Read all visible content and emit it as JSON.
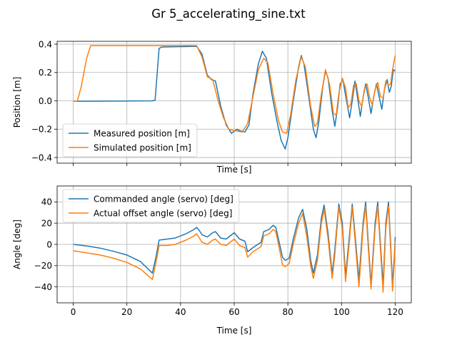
{
  "figure": {
    "title": "Gr 5_accelerating_sine.txt"
  },
  "colors": {
    "series1": "#1f77b4",
    "series2": "#ff7f0e",
    "grid": "#b0b0b0"
  },
  "chart_data": [
    {
      "type": "line",
      "xlabel": "Time [s]",
      "ylabel": "Position [m]",
      "xlim": [
        -6,
        126
      ],
      "ylim": [
        -0.44,
        0.42
      ],
      "xticks": [
        0,
        20,
        40,
        60,
        80,
        100,
        120
      ],
      "yticks": [
        -0.4,
        -0.2,
        0.0,
        0.2,
        0.4
      ],
      "ytick_labels": [
        "−0.4",
        "−0.2",
        "0.0",
        "0.2",
        "0.4"
      ],
      "show_xtick_labels": false,
      "grid": true,
      "legend": "lower-left",
      "series": [
        {
          "name": "Measured position [m]",
          "points": [
            [
              0,
              -0.003
            ],
            [
              15,
              -0.002
            ],
            [
              29.5,
              0.0
            ],
            [
              30.5,
              0.005
            ],
            [
              32,
              0.37
            ],
            [
              33,
              0.38
            ],
            [
              46,
              0.385
            ],
            [
              48,
              0.33
            ],
            [
              50,
              0.18
            ],
            [
              51.5,
              0.15
            ],
            [
              53,
              0.14
            ],
            [
              55,
              -0.04
            ],
            [
              57,
              -0.17
            ],
            [
              59,
              -0.23
            ],
            [
              61,
              -0.2
            ],
            [
              62,
              -0.21
            ],
            [
              64,
              -0.22
            ],
            [
              65.5,
              -0.17
            ],
            [
              67,
              0.05
            ],
            [
              69,
              0.26
            ],
            [
              70.5,
              0.35
            ],
            [
              72,
              0.3
            ],
            [
              74,
              0.05
            ],
            [
              76,
              -0.15
            ],
            [
              77.5,
              -0.28
            ],
            [
              79,
              -0.34
            ],
            [
              80,
              -0.26
            ],
            [
              82,
              0.0
            ],
            [
              84,
              0.24
            ],
            [
              85,
              0.32
            ],
            [
              86,
              0.26
            ],
            [
              88,
              0.0
            ],
            [
              89.5,
              -0.2
            ],
            [
              90.5,
              -0.26
            ],
            [
              91.5,
              -0.15
            ],
            [
              93,
              0.1
            ],
            [
              94,
              0.21
            ],
            [
              95,
              0.16
            ],
            [
              96.5,
              -0.07
            ],
            [
              97.5,
              -0.18
            ],
            [
              98.5,
              -0.05
            ],
            [
              99.5,
              0.12
            ],
            [
              100.5,
              0.15
            ],
            [
              101.5,
              0.04
            ],
            [
              103,
              -0.12
            ],
            [
              104,
              0.0
            ],
            [
              105,
              0.14
            ],
            [
              106,
              0.02
            ],
            [
              107,
              -0.11
            ],
            [
              108,
              0.02
            ],
            [
              109,
              0.12
            ],
            [
              110,
              0.02
            ],
            [
              111,
              -0.09
            ],
            [
              112,
              0.03
            ],
            [
              113,
              0.12
            ],
            [
              114,
              0.03
            ],
            [
              115,
              -0.06
            ],
            [
              116,
              0.08
            ],
            [
              117,
              0.15
            ],
            [
              117.8,
              0.06
            ],
            [
              118.5,
              0.1
            ],
            [
              119.3,
              0.22
            ],
            [
              120,
              0.21
            ]
          ]
        },
        {
          "name": "Simulated position [m]",
          "points": [
            [
              0,
              -0.003
            ],
            [
              1.5,
              -0.003
            ],
            [
              3,
              0.1
            ],
            [
              5,
              0.3
            ],
            [
              6.5,
              0.39
            ],
            [
              46,
              0.39
            ],
            [
              48,
              0.31
            ],
            [
              50,
              0.17
            ],
            [
              52,
              0.15
            ],
            [
              54,
              0.0
            ],
            [
              56,
              -0.12
            ],
            [
              58,
              -0.2
            ],
            [
              60,
              -0.21
            ],
            [
              63,
              -0.22
            ],
            [
              65,
              -0.16
            ],
            [
              67,
              0.03
            ],
            [
              69,
              0.22
            ],
            [
              71,
              0.3
            ],
            [
              72.5,
              0.27
            ],
            [
              74.5,
              0.05
            ],
            [
              76.5,
              -0.14
            ],
            [
              78,
              -0.22
            ],
            [
              79.5,
              -0.23
            ],
            [
              81,
              -0.1
            ],
            [
              83,
              0.15
            ],
            [
              85,
              0.31
            ],
            [
              86.5,
              0.24
            ],
            [
              88.5,
              -0.04
            ],
            [
              90,
              -0.18
            ],
            [
              91,
              -0.16
            ],
            [
              92.5,
              0.05
            ],
            [
              94,
              0.22
            ],
            [
              95.5,
              0.12
            ],
            [
              97,
              -0.09
            ],
            [
              98,
              -0.1
            ],
            [
              99,
              0.05
            ],
            [
              100.3,
              0.16
            ],
            [
              101.5,
              0.09
            ],
            [
              102.5,
              -0.05
            ],
            [
              103.5,
              -0.02
            ],
            [
              104.5,
              0.11
            ],
            [
              105.5,
              0.12
            ],
            [
              106.5,
              0.0
            ],
            [
              107.5,
              -0.04
            ],
            [
              108.5,
              0.08
            ],
            [
              109.5,
              0.12
            ],
            [
              110.5,
              0.02
            ],
            [
              111.5,
              -0.03
            ],
            [
              112.5,
              0.08
            ],
            [
              113.5,
              0.13
            ],
            [
              114.5,
              0.03
            ],
            [
              115.5,
              0.02
            ],
            [
              116.5,
              0.14
            ],
            [
              117.5,
              0.11
            ],
            [
              118.3,
              0.12
            ],
            [
              119,
              0.22
            ],
            [
              120,
              0.32
            ]
          ]
        }
      ]
    },
    {
      "type": "line",
      "xlabel": "Time [s]",
      "ylabel": "Angle [deg]",
      "xlim": [
        -6,
        126
      ],
      "ylim": [
        -55,
        55
      ],
      "xticks": [
        0,
        20,
        40,
        60,
        80,
        100,
        120
      ],
      "yticks": [
        -40,
        -20,
        0,
        20,
        40
      ],
      "ytick_labels": [
        "−40",
        "−20",
        "0",
        "20",
        "40"
      ],
      "show_xtick_labels": true,
      "grid": true,
      "legend": "upper-left",
      "series": [
        {
          "name": "Commanded angle (servo) [deg]",
          "points": [
            [
              0,
              0
            ],
            [
              5,
              -1.5
            ],
            [
              10,
              -3.5
            ],
            [
              15,
              -6.5
            ],
            [
              20,
              -10
            ],
            [
              25,
              -16
            ],
            [
              29.5,
              -27
            ],
            [
              31,
              -10
            ],
            [
              32,
              4
            ],
            [
              35,
              5
            ],
            [
              38,
              6
            ],
            [
              42,
              10
            ],
            [
              45,
              14
            ],
            [
              46,
              16
            ],
            [
              47,
              13
            ],
            [
              48,
              9
            ],
            [
              50,
              7
            ],
            [
              52,
              11
            ],
            [
              53,
              12
            ],
            [
              55,
              6
            ],
            [
              57,
              5
            ],
            [
              59,
              9
            ],
            [
              60,
              11
            ],
            [
              62,
              5
            ],
            [
              64,
              3
            ],
            [
              65,
              -7
            ],
            [
              67,
              -3
            ],
            [
              70,
              2
            ],
            [
              71,
              12
            ],
            [
              73,
              14
            ],
            [
              74.5,
              18
            ],
            [
              75.5,
              16
            ],
            [
              76.5,
              5
            ],
            [
              78,
              -12
            ],
            [
              79,
              -15
            ],
            [
              80.5,
              -13
            ],
            [
              82,
              5
            ],
            [
              84,
              25
            ],
            [
              85.5,
              33
            ],
            [
              87,
              15
            ],
            [
              88.5,
              -15
            ],
            [
              89.5,
              -27
            ],
            [
              91,
              -10
            ],
            [
              92.5,
              25
            ],
            [
              93.5,
              37
            ],
            [
              95,
              10
            ],
            [
              96.5,
              -28
            ],
            [
              97.5,
              -5
            ],
            [
              99,
              38
            ],
            [
              100.3,
              20
            ],
            [
              101.5,
              -30
            ],
            [
              103,
              10
            ],
            [
              104,
              38
            ],
            [
              105,
              10
            ],
            [
              106.5,
              -33
            ],
            [
              108,
              20
            ],
            [
              109,
              40
            ],
            [
              110,
              0
            ],
            [
              111,
              -38
            ],
            [
              112.5,
              20
            ],
            [
              113.5,
              40
            ],
            [
              114.5,
              0
            ],
            [
              115.5,
              -38
            ],
            [
              116.5,
              20
            ],
            [
              117.5,
              40
            ],
            [
              118.3,
              0
            ],
            [
              119,
              -38
            ],
            [
              119.7,
              -10
            ],
            [
              120,
              7
            ]
          ]
        },
        {
          "name": "Actual offset angle (servo) [deg]",
          "points": [
            [
              0,
              -6
            ],
            [
              5,
              -8
            ],
            [
              10,
              -10
            ],
            [
              15,
              -13
            ],
            [
              20,
              -17
            ],
            [
              25,
              -23
            ],
            [
              29.5,
              -33
            ],
            [
              31,
              -15
            ],
            [
              32,
              -1
            ],
            [
              35,
              -1
            ],
            [
              38,
              0
            ],
            [
              42,
              4
            ],
            [
              45,
              8
            ],
            [
              46,
              10
            ],
            [
              47,
              6
            ],
            [
              48,
              2
            ],
            [
              50,
              0
            ],
            [
              52,
              4
            ],
            [
              53,
              5
            ],
            [
              55,
              0
            ],
            [
              57,
              -1
            ],
            [
              59,
              3
            ],
            [
              60,
              5
            ],
            [
              62,
              -1
            ],
            [
              64,
              -3
            ],
            [
              65,
              -12
            ],
            [
              67,
              -7
            ],
            [
              70,
              -2
            ],
            [
              71,
              8
            ],
            [
              73,
              10
            ],
            [
              74.5,
              14
            ],
            [
              75.5,
              12
            ],
            [
              76.5,
              0
            ],
            [
              78,
              -19
            ],
            [
              79,
              -21
            ],
            [
              80.5,
              -18
            ],
            [
              82,
              0
            ],
            [
              84,
              20
            ],
            [
              85.5,
              29
            ],
            [
              87,
              8
            ],
            [
              88.5,
              -20
            ],
            [
              89.5,
              -32
            ],
            [
              91,
              -15
            ],
            [
              92.5,
              20
            ],
            [
              93.5,
              33
            ],
            [
              95,
              5
            ],
            [
              96.5,
              -32
            ],
            [
              97.5,
              -10
            ],
            [
              99,
              35
            ],
            [
              100.3,
              15
            ],
            [
              101.5,
              -35
            ],
            [
              103,
              5
            ],
            [
              104,
              35
            ],
            [
              105,
              5
            ],
            [
              106.5,
              -40
            ],
            [
              108,
              15
            ],
            [
              109,
              36
            ],
            [
              110,
              -5
            ],
            [
              111,
              -42
            ],
            [
              112.5,
              15
            ],
            [
              113.5,
              36
            ],
            [
              114.5,
              -5
            ],
            [
              115.5,
              -45
            ],
            [
              116.5,
              15
            ],
            [
              117.5,
              36
            ],
            [
              118.3,
              -5
            ],
            [
              119,
              -44
            ],
            [
              119.7,
              -15
            ],
            [
              120,
              3
            ]
          ]
        }
      ]
    }
  ]
}
